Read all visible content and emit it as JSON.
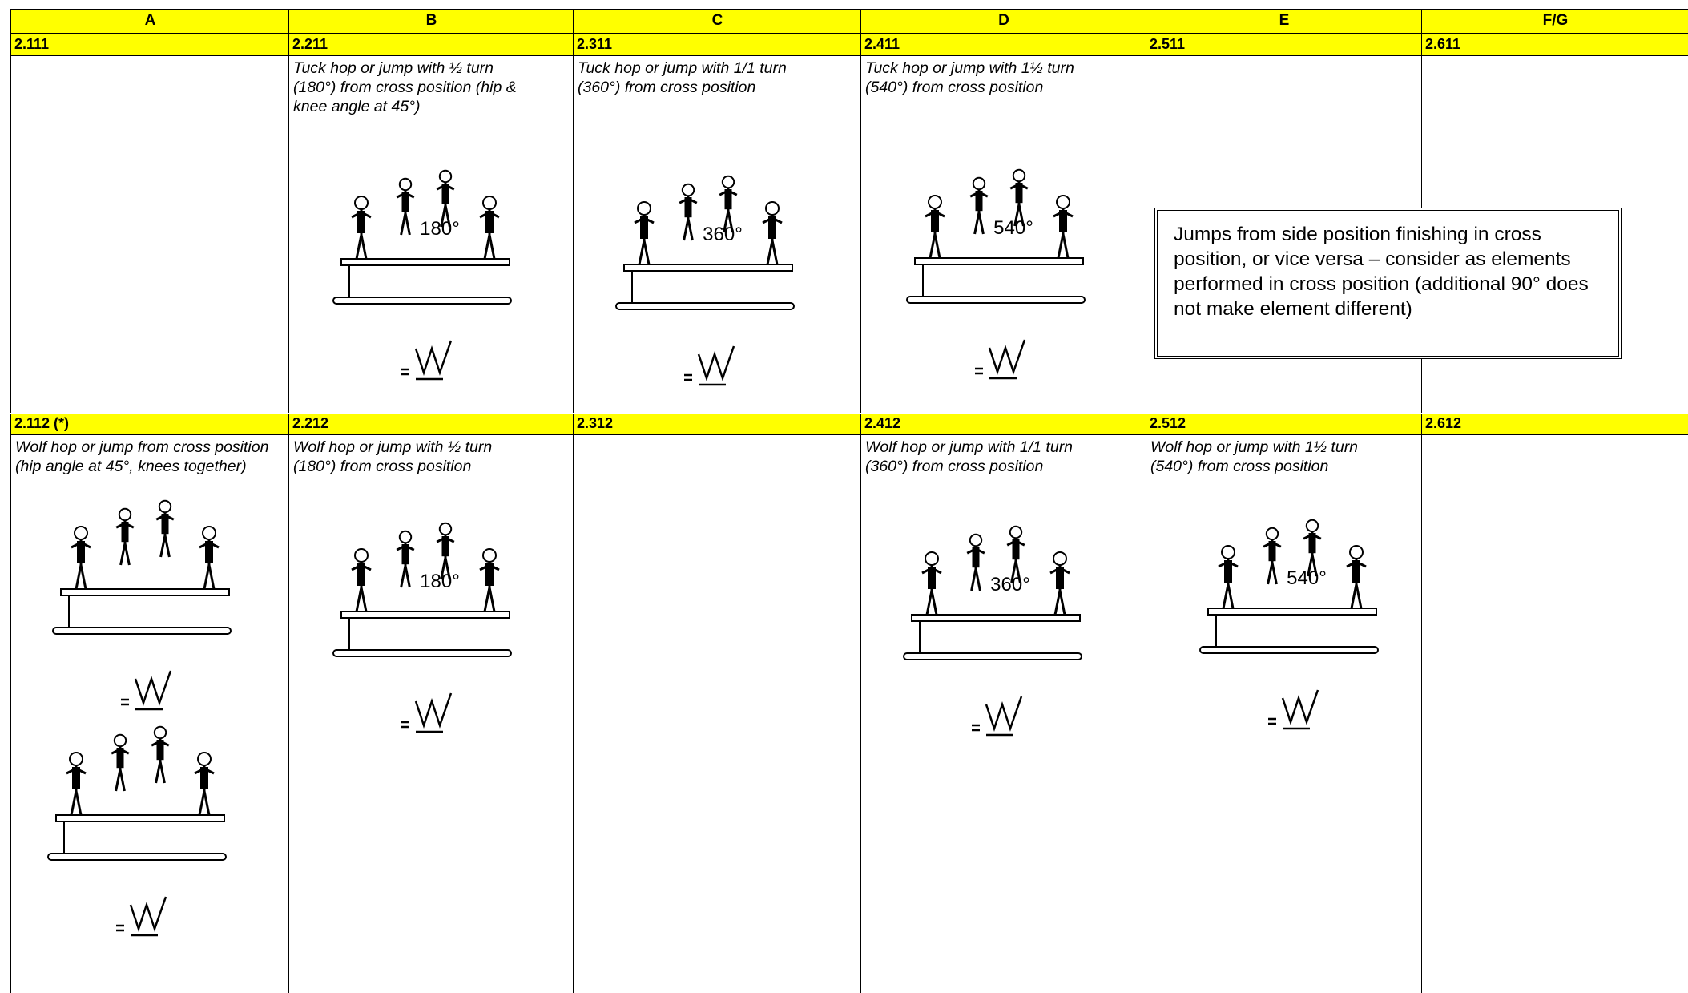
{
  "header": {
    "columns": [
      "A",
      "B",
      "C",
      "D",
      "E",
      "F/G"
    ]
  },
  "rows": [
    {
      "cells": [
        {
          "code": "2.111"
        },
        {
          "code": "2.211",
          "description": "Tuck hop or jump with ½ turn (180°) from cross position (hip & knee angle at 45°)",
          "figure_label": "180°"
        },
        {
          "code": "2.311",
          "description": "Tuck hop or jump with 1/1 turn (360°) from cross position",
          "figure_label": "360°"
        },
        {
          "code": "2.411",
          "description": "Tuck hop or jump with 1½ turn (540°) from cross position",
          "figure_label": "540°"
        },
        {
          "code": "2.511"
        },
        {
          "code": "2.611"
        }
      ]
    },
    {
      "cells": [
        {
          "code": "2.112 (*)",
          "description": "Wolf hop or jump from cross position (hip angle at 45°, knees together)"
        },
        {
          "code": "2.212",
          "description": "Wolf hop or jump with ½ turn (180°) from cross position",
          "figure_label": "180°"
        },
        {
          "code": "2.312"
        },
        {
          "code": "2.412",
          "description": "Wolf hop or jump with 1/1 turn (360°) from cross position",
          "figure_label": "360°"
        },
        {
          "code": "2.512",
          "description": "Wolf hop or jump with 1½ turn (540°) from cross position",
          "figure_label": "540°"
        },
        {
          "code": "2.612"
        }
      ]
    }
  ],
  "note": "Jumps from side position finishing in cross position, or vice versa – consider as elements performed in cross position (additional 90° does not make element different)"
}
